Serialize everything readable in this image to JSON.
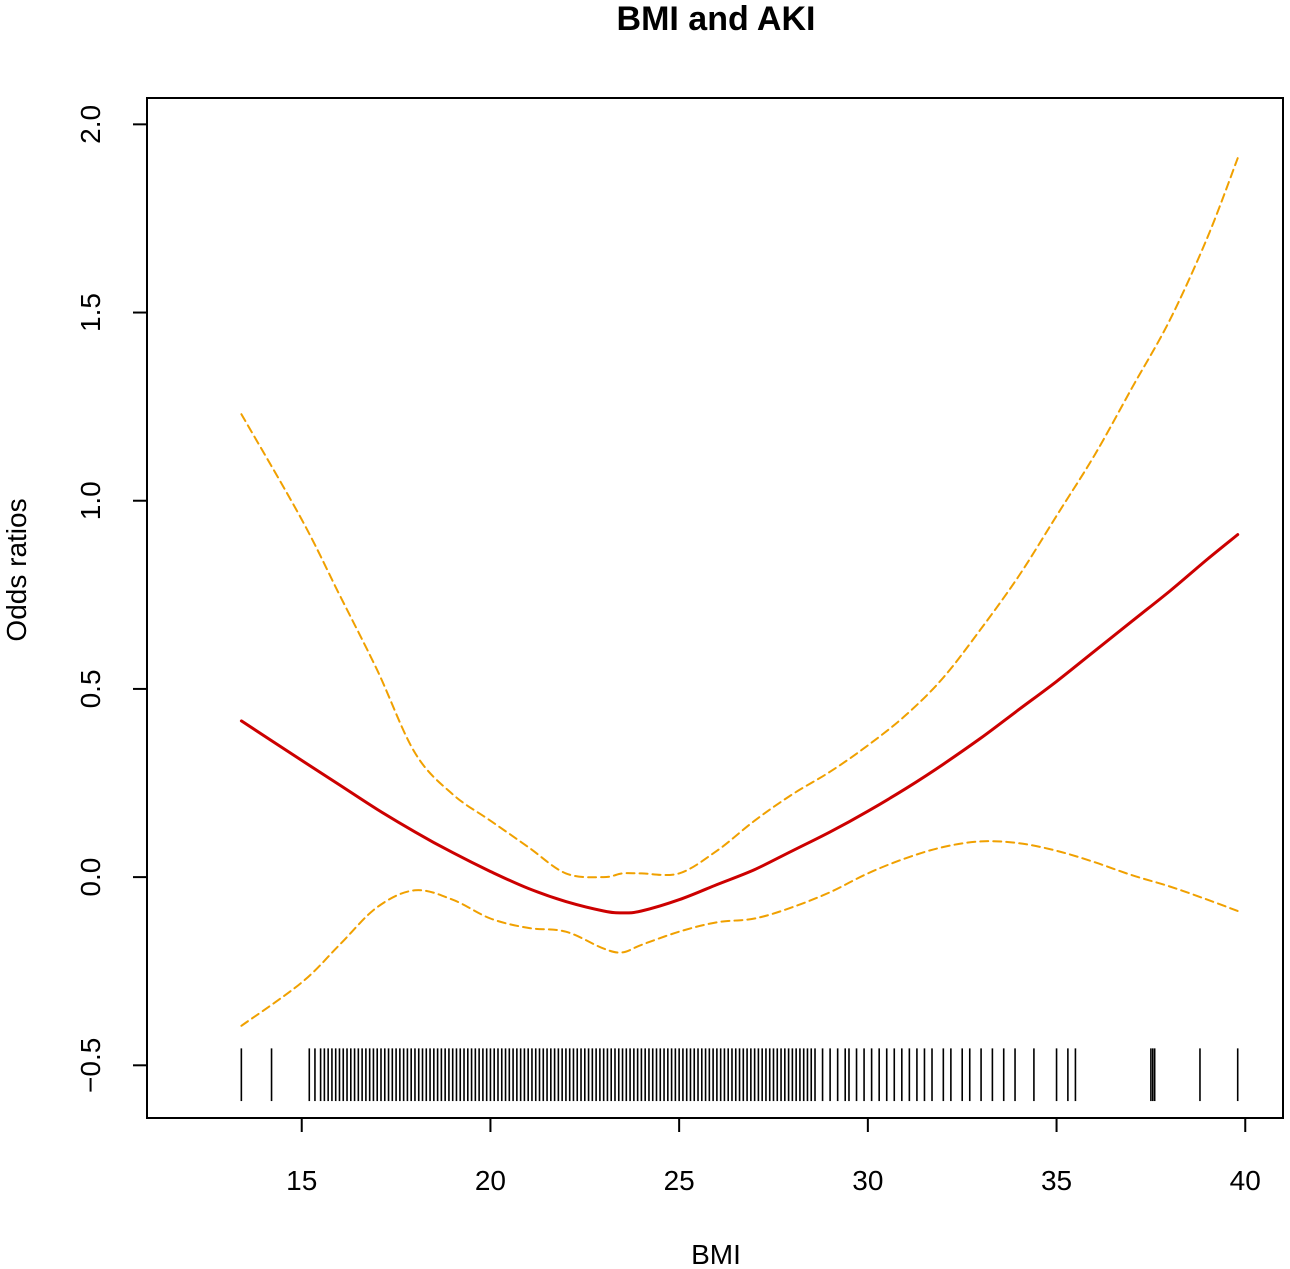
{
  "chart_data": {
    "type": "line",
    "title": "BMI and AKI",
    "xlabel": "BMI",
    "ylabel": "Odds ratios",
    "xlim": [
      10.9,
      41.0
    ],
    "ylim": [
      -0.64,
      2.07
    ],
    "xticks": [
      15,
      20,
      25,
      30,
      35,
      40
    ],
    "xtick_labels": [
      "15",
      "20",
      "25",
      "30",
      "35",
      "40"
    ],
    "yticks": [
      -0.5,
      0.0,
      0.5,
      1.0,
      1.5,
      2.0
    ],
    "ytick_labels": [
      "−0.5",
      "0.0",
      "0.5",
      "1.0",
      "1.5",
      "2.0"
    ],
    "grid": false,
    "legend": "none",
    "colors": {
      "estimate": "#cc0000",
      "ci": "#f0a000",
      "rug": "#000000",
      "frame": "#000000"
    },
    "x": [
      13.4,
      15,
      16,
      17,
      18,
      19,
      20,
      21,
      22,
      23,
      23.5,
      24,
      25,
      26,
      27,
      28,
      29,
      30,
      31,
      32,
      33,
      34,
      35,
      36,
      37,
      38,
      39,
      39.8
    ],
    "series": [
      {
        "role": "estimate",
        "style": "solid",
        "values": [
          0.415,
          0.31,
          0.245,
          0.18,
          0.12,
          0.065,
          0.015,
          -0.03,
          -0.065,
          -0.09,
          -0.095,
          -0.09,
          -0.06,
          -0.02,
          0.02,
          0.07,
          0.12,
          0.175,
          0.235,
          0.3,
          0.37,
          0.445,
          0.52,
          0.6,
          0.68,
          0.76,
          0.845,
          0.91
        ]
      },
      {
        "role": "upper_ci",
        "style": "dashed",
        "values": [
          1.23,
          0.95,
          0.75,
          0.55,
          0.33,
          0.22,
          0.15,
          0.08,
          0.01,
          0.0,
          0.01,
          0.01,
          0.01,
          0.07,
          0.15,
          0.22,
          0.28,
          0.35,
          0.43,
          0.53,
          0.66,
          0.8,
          0.96,
          1.12,
          1.3,
          1.48,
          1.7,
          1.91
        ]
      },
      {
        "role": "lower_ci",
        "style": "dashed",
        "values": [
          -0.395,
          -0.28,
          -0.18,
          -0.08,
          -0.035,
          -0.06,
          -0.11,
          -0.135,
          -0.145,
          -0.19,
          -0.2,
          -0.18,
          -0.145,
          -0.12,
          -0.11,
          -0.08,
          -0.04,
          0.01,
          0.05,
          0.08,
          0.095,
          0.09,
          0.07,
          0.04,
          0.005,
          -0.025,
          -0.06,
          -0.09
        ]
      }
    ],
    "rug": [
      13.4,
      14.2,
      15.2,
      15.35,
      15.5,
      15.6,
      15.7,
      15.8,
      15.9,
      16.0,
      16.1,
      16.2,
      16.3,
      16.4,
      16.5,
      16.6,
      16.7,
      16.8,
      16.9,
      17.0,
      17.1,
      17.2,
      17.3,
      17.4,
      17.5,
      17.6,
      17.7,
      17.8,
      17.9,
      18.0,
      18.1,
      18.2,
      18.3,
      18.4,
      18.5,
      18.6,
      18.7,
      18.8,
      18.9,
      19.0,
      19.1,
      19.2,
      19.3,
      19.4,
      19.5,
      19.6,
      19.7,
      19.8,
      19.9,
      20.0,
      20.1,
      20.2,
      20.3,
      20.4,
      20.5,
      20.6,
      20.7,
      20.8,
      20.9,
      21.0,
      21.1,
      21.2,
      21.3,
      21.4,
      21.5,
      21.6,
      21.7,
      21.8,
      21.9,
      22.0,
      22.1,
      22.2,
      22.3,
      22.4,
      22.5,
      22.6,
      22.7,
      22.8,
      22.9,
      23.0,
      23.1,
      23.2,
      23.3,
      23.4,
      23.5,
      23.6,
      23.7,
      23.8,
      23.9,
      24.0,
      24.1,
      24.2,
      24.3,
      24.4,
      24.5,
      24.6,
      24.7,
      24.8,
      24.9,
      25.0,
      25.1,
      25.2,
      25.3,
      25.4,
      25.5,
      25.6,
      25.7,
      25.8,
      25.9,
      26.0,
      26.1,
      26.2,
      26.3,
      26.4,
      26.5,
      26.6,
      26.7,
      26.8,
      26.9,
      27.0,
      27.1,
      27.2,
      27.3,
      27.4,
      27.5,
      27.6,
      27.7,
      27.8,
      27.9,
      28.0,
      28.1,
      28.2,
      28.3,
      28.4,
      28.5,
      28.6,
      28.8,
      29.0,
      29.2,
      29.4,
      29.5,
      29.7,
      29.9,
      30.1,
      30.3,
      30.5,
      30.7,
      30.9,
      31.1,
      31.3,
      31.5,
      31.7,
      32.0,
      32.2,
      32.5,
      32.7,
      33.0,
      33.3,
      33.6,
      33.9,
      34.4,
      35.0,
      35.3,
      35.5,
      37.5,
      37.55,
      37.6,
      38.8,
      39.8
    ]
  }
}
